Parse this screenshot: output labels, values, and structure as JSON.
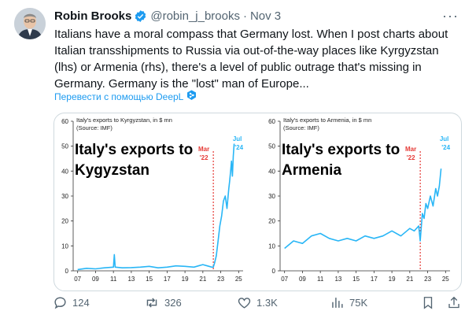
{
  "tweet": {
    "author_name": "Robin Brooks",
    "handle": "@robin_j_brooks",
    "separator": "·",
    "date": "Nov 3",
    "more": "···",
    "text_lines": [
      "Italians have a moral compass that Germany lost. When I post charts about",
      "Italian transshipments to Russia via out-of-the-way places like Kyrgyzstan",
      "(lhs) or Armenia (rhs), there's a level of public outrage that's missing in",
      "Germany. Germany is the \"lost\" man of Europe..."
    ],
    "translate_label": "Перевести с помощью DeepL"
  },
  "actions": {
    "replies": "124",
    "reposts": "326",
    "likes": "1.3K",
    "views": "75K"
  },
  "chart_data": [
    {
      "type": "line",
      "title": "Italy's exports to Kygyzstan",
      "subtitle": "Italy's exports to Kyrgyzstan, in $ mn (Source: IMF)",
      "x_ticks": [
        "07",
        "09",
        "11",
        "13",
        "15",
        "17",
        "19",
        "21",
        "23",
        "25"
      ],
      "y_ticks": [
        0,
        10,
        20,
        30,
        40,
        50,
        60
      ],
      "ylim": [
        0,
        60
      ],
      "xlim": [
        2006.5,
        2025.5
      ],
      "marker": {
        "label_line1": "Mar",
        "label_line2": "'22",
        "x": 2022.17
      },
      "end_label": {
        "line1": "Jul",
        "line2": "'24"
      },
      "colors": {
        "series": "#29b6f6",
        "marker": "#e53935"
      },
      "series": [
        {
          "x": [
            2007,
            2008,
            2009,
            2010,
            2011,
            2011.1,
            2011.2,
            2012,
            2013,
            2014,
            2015,
            2016,
            2017,
            2018,
            2019,
            2020,
            2021,
            2021.5,
            2022,
            2022.17,
            2022.3,
            2022.5,
            2022.7,
            2022.9,
            2023.1,
            2023.3,
            2023.5,
            2023.7,
            2023.9,
            2024.0,
            2024.1,
            2024.2,
            2024.3,
            2024.4,
            2024.5
          ],
          "y": [
            0.5,
            1,
            0.8,
            1.2,
            1.5,
            6.5,
            1.5,
            1.2,
            1.3,
            1.5,
            1.8,
            1.2,
            1.5,
            2,
            1.8,
            1.5,
            2.5,
            2,
            1.5,
            1.5,
            3,
            6,
            12,
            18,
            22,
            28,
            30,
            25,
            33,
            36,
            40,
            44,
            38,
            46,
            51
          ]
        }
      ]
    },
    {
      "type": "line",
      "title": "Italy's exports to Armenia",
      "subtitle": "Italy's exports to Armenia, in $ mn (Source: IMF)",
      "x_ticks": [
        "07",
        "09",
        "11",
        "13",
        "15",
        "17",
        "19",
        "21",
        "23",
        "25"
      ],
      "y_ticks": [
        0,
        10,
        20,
        30,
        40,
        50,
        60
      ],
      "ylim": [
        0,
        60
      ],
      "xlim": [
        2006.5,
        2025.5
      ],
      "marker": {
        "label_line1": "Mar",
        "label_line2": "'22",
        "x": 2022.17
      },
      "end_label": {
        "line1": "Jul",
        "line2": "'24"
      },
      "colors": {
        "series": "#29b6f6",
        "marker": "#e53935"
      },
      "series": [
        {
          "x": [
            2007,
            2008,
            2009,
            2010,
            2011,
            2012,
            2013,
            2014,
            2015,
            2016,
            2017,
            2018,
            2019,
            2020,
            2021,
            2021.5,
            2022,
            2022.17,
            2022.4,
            2022.6,
            2022.8,
            2023.0,
            2023.3,
            2023.6,
            2023.9,
            2024.1,
            2024.3,
            2024.5
          ],
          "y": [
            9,
            12,
            11,
            14,
            15,
            13,
            12,
            13,
            12,
            14,
            13,
            14,
            16,
            14,
            17,
            16,
            18,
            12,
            23,
            21,
            27,
            25,
            30,
            26,
            33,
            30,
            34,
            41
          ]
        }
      ]
    }
  ]
}
